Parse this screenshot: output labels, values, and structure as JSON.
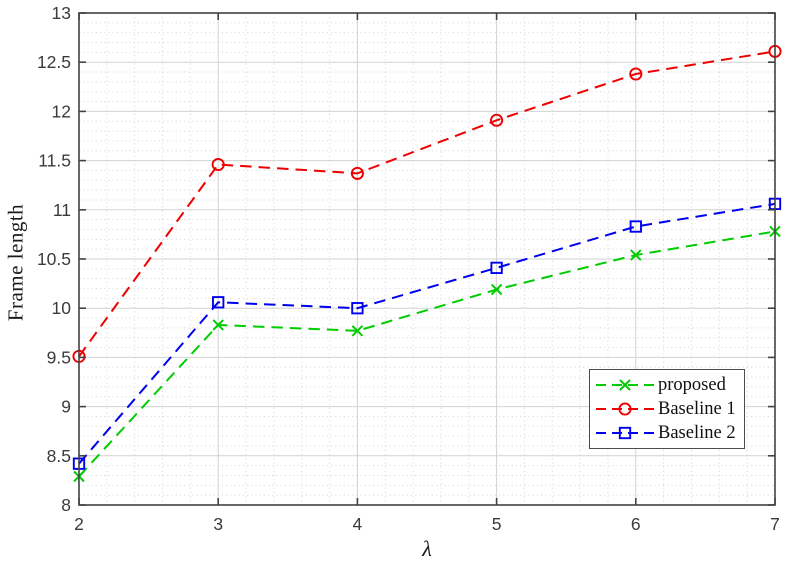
{
  "colors": {
    "background": "#ffffff",
    "axis_border": "#424242",
    "grid_major": "#d2d2d2",
    "grid_minor": "#dadada",
    "tick_label": "#3b3b3b",
    "text": "#1a1a1a"
  },
  "chart_data": {
    "type": "line",
    "title": "",
    "xlabel": "λ",
    "ylabel": "Frame length",
    "x": [
      2,
      3,
      4,
      5,
      6,
      7
    ],
    "xlim": [
      2,
      7
    ],
    "ylim": [
      8,
      13
    ],
    "xticks": {
      "values": [
        2,
        3,
        4,
        5,
        6,
        7
      ],
      "labels": [
        "2",
        "3",
        "4",
        "5",
        "6",
        "7"
      ]
    },
    "yticks": {
      "values": [
        8,
        8.5,
        9,
        9.5,
        10,
        10.5,
        11,
        11.5,
        12,
        12.5,
        13
      ],
      "labels": [
        "8",
        "8.5",
        "9",
        "9.5",
        "10",
        "10.5",
        "11",
        "11.5",
        "12",
        "12.5",
        "13"
      ]
    },
    "grid": {
      "major": true,
      "minor": true,
      "x_minor_step": 0.2,
      "y_minor_step": 0.1
    },
    "series": [
      {
        "name": "proposed",
        "color": "#00cc00",
        "marker": "x",
        "line_style": "dashed",
        "values": [
          8.29,
          9.83,
          9.77,
          10.19,
          10.54,
          10.78
        ]
      },
      {
        "name": "Baseline 1",
        "color": "#ee0000",
        "marker": "circle",
        "line_style": "dashed",
        "values": [
          9.51,
          11.46,
          11.37,
          11.91,
          12.38,
          12.61
        ]
      },
      {
        "name": "Baseline 2",
        "color": "#0000ee",
        "marker": "square",
        "line_style": "dashed",
        "values": [
          8.42,
          10.06,
          10.0,
          10.41,
          10.83,
          11.06
        ]
      }
    ],
    "legend": {
      "position": "right-center",
      "entries": [
        "proposed",
        "Baseline 1",
        "Baseline 2"
      ]
    }
  }
}
